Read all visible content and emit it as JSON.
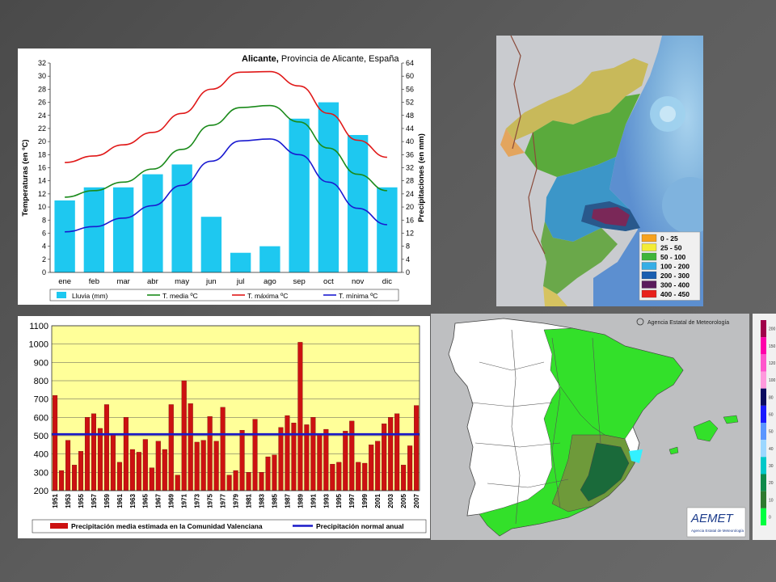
{
  "climograph": {
    "chart_data": {
      "type": "bar",
      "title": "Alicante, Provincia de Alicante, España",
      "title_bold": "Alicante,",
      "title_rest": " Provincia de Alicante, España",
      "categories": [
        "ene",
        "feb",
        "mar",
        "abr",
        "may",
        "jun",
        "jul",
        "ago",
        "sep",
        "oct",
        "nov",
        "dic"
      ],
      "ylabel_left": "Temperaturas (en ºC)",
      "ylabel_right": "Precipitaciones (en mm)",
      "ylim_left": [
        0,
        32
      ],
      "ylim_right": [
        0,
        64
      ],
      "yticks_left": [
        0,
        2,
        4,
        6,
        8,
        10,
        12,
        14,
        16,
        18,
        20,
        22,
        24,
        26,
        28,
        30,
        32
      ],
      "yticks_right": [
        0,
        4,
        8,
        12,
        16,
        20,
        24,
        28,
        32,
        36,
        40,
        44,
        48,
        52,
        56,
        60,
        64
      ],
      "series": [
        {
          "name": "Lluvia (mm)",
          "kind": "bar",
          "axis": "right",
          "color": "#1ec8f0",
          "values": [
            22,
            26,
            26,
            30,
            33,
            17,
            6,
            8,
            47,
            52,
            42,
            26
          ]
        },
        {
          "name": "T. media ºC",
          "kind": "line",
          "axis": "left",
          "color": "#1a8a1a",
          "values": [
            11.5,
            12.5,
            13.8,
            15.8,
            18.8,
            22.5,
            25.2,
            25.5,
            23.0,
            19.0,
            15.0,
            12.5
          ]
        },
        {
          "name": "T. máxima ºC",
          "kind": "line",
          "axis": "left",
          "color": "#e01818",
          "values": [
            16.8,
            17.8,
            19.5,
            21.4,
            24.3,
            28.0,
            30.6,
            30.7,
            28.5,
            24.3,
            20.2,
            17.6
          ]
        },
        {
          "name": "T. mínima ºC",
          "kind": "line",
          "axis": "left",
          "color": "#1a1ad0",
          "values": [
            6.2,
            7.0,
            8.3,
            10.2,
            13.3,
            17.0,
            20.1,
            20.4,
            18.0,
            13.8,
            9.8,
            7.3
          ]
        }
      ],
      "grid": false,
      "legend_placement": "bottom"
    }
  },
  "annual": {
    "chart_data": {
      "type": "bar",
      "categories": [
        "1951",
        "1952",
        "1953",
        "1954",
        "1955",
        "1956",
        "1957",
        "1958",
        "1959",
        "1960",
        "1961",
        "1962",
        "1963",
        "1964",
        "1965",
        "1966",
        "1967",
        "1968",
        "1969",
        "1970",
        "1971",
        "1972",
        "1973",
        "1974",
        "1975",
        "1976",
        "1977",
        "1978",
        "1979",
        "1980",
        "1981",
        "1982",
        "1983",
        "1984",
        "1985",
        "1986",
        "1987",
        "1988",
        "1989",
        "1990",
        "1991",
        "1992",
        "1993",
        "1994",
        "1995",
        "1996",
        "1997",
        "1998",
        "1999",
        "2000",
        "2001",
        "2002",
        "2003",
        "2004",
        "2005",
        "2006",
        "2007"
      ],
      "xtick_labels": [
        "1951",
        "1953",
        "1955",
        "1957",
        "1959",
        "1961",
        "1963",
        "1965",
        "1967",
        "1969",
        "1971",
        "1973",
        "1975",
        "1977",
        "1979",
        "1981",
        "1983",
        "1985",
        "1987",
        "1989",
        "1991",
        "1993",
        "1995",
        "1997",
        "1999",
        "2001",
        "2003",
        "2005",
        "2007"
      ],
      "ylim": [
        200,
        1100
      ],
      "yticks": [
        200,
        300,
        400,
        500,
        600,
        700,
        800,
        900,
        1000,
        1100
      ],
      "series": [
        {
          "name": "Precipitación media estimada en la Comunidad Valenciana",
          "kind": "bar",
          "color": "#cc1111",
          "values": [
            720,
            310,
            475,
            340,
            415,
            600,
            620,
            540,
            670,
            505,
            355,
            600,
            425,
            410,
            480,
            325,
            470,
            425,
            670,
            285,
            800,
            675,
            465,
            475,
            605,
            470,
            655,
            285,
            310,
            530,
            300,
            590,
            300,
            385,
            395,
            545,
            610,
            570,
            1010,
            560,
            600,
            510,
            535,
            345,
            355,
            525,
            580,
            355,
            350,
            450,
            470,
            565,
            600,
            620,
            340,
            445,
            665
          ]
        },
        {
          "name": "Precipitación normal anual",
          "kind": "line",
          "color": "#1a1ac8",
          "value": 508
        }
      ],
      "grid": true,
      "legend_placement": "bottom"
    }
  },
  "precip_map": {
    "legend": [
      {
        "label": "0 - 25",
        "color": "#f6a21e"
      },
      {
        "label": "25 - 50",
        "color": "#f3ec35"
      },
      {
        "label": "50 - 100",
        "color": "#3fb53a"
      },
      {
        "label": "100 - 200",
        "color": "#36aee6"
      },
      {
        "label": "200 - 300",
        "color": "#1a5fb0"
      },
      {
        "label": "300 - 400",
        "color": "#5a1a5c"
      },
      {
        "label": "400 - 450",
        "color": "#e8211c"
      }
    ]
  },
  "aemet_map": {
    "copyright": "Agencia Estatal de Meteorología",
    "logo_name": "AEMET",
    "logo_subtext": "Agencia Estatal de Meteorología",
    "scale": {
      "labels": [
        "200",
        "150",
        "120",
        "100",
        "80",
        "60",
        "50",
        "40",
        "30",
        "20",
        "10",
        "0"
      ],
      "colors": [
        "#a0004a",
        "#ff00aa",
        "#ff55cc",
        "#ff99dd",
        "#0a0a60",
        "#1a1aff",
        "#5b96ff",
        "#9cd7ff",
        "#00c8c8",
        "#0e8a4a",
        "#2e7a2e",
        "#00ff40"
      ]
    }
  }
}
